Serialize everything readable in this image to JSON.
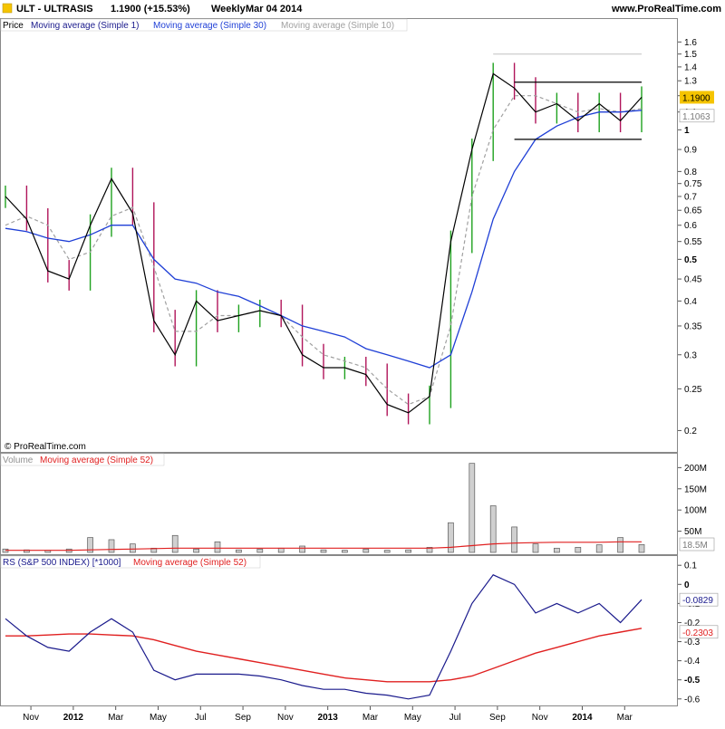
{
  "header": {
    "symbol_title": "ULT - ULTRASIS",
    "last_change": "1.1900 (+15.53%)",
    "period": "Weekly",
    "date": "Mar 04 2014",
    "site": "www.ProRealTime.com"
  },
  "copyright": "© ProRealTime.com",
  "colors": {
    "up_bar": "#1fa21f",
    "down_bar": "#b0145a",
    "close_line": "#000000",
    "ma30": "#1f3fd6",
    "ma10": "#a0a0a0",
    "ma52": "#e02020",
    "rs": "#1a1a8c",
    "volume_bar": "#8a8a8a",
    "last_badge": "#f5c400"
  },
  "chart_data": [
    {
      "type": "line",
      "panel": "price",
      "legend": [
        "Price",
        "Moving average (Simple 1)",
        "Moving average (Simple 30)",
        "Moving average (Simple 10)"
      ],
      "y_scale": "log",
      "ylim": [
        0.19,
        1.65
      ],
      "y_ticks": [
        "1.6",
        "1.5",
        "1.4",
        "1.3",
        "1.2",
        "1.1",
        "1",
        "0.9",
        "0.8",
        "0.75",
        "0.7",
        "0.65",
        "0.6",
        "0.55",
        "0.5",
        "0.45",
        "0.4",
        "0.35",
        "0.3",
        "0.25",
        "0.2"
      ],
      "last_value_label": "1.1900",
      "ma30_value_label": "1.1063",
      "x_ticks": [
        "Nov",
        "2012",
        "Mar",
        "May",
        "Jul",
        "Sep",
        "Nov",
        "2013",
        "Mar",
        "May",
        "Jul",
        "Sep",
        "Nov",
        "2014",
        "Mar"
      ],
      "x": [
        "Sep 2011",
        "Oct 2011",
        "Nov 2011",
        "Dec 2011",
        "Jan 2012",
        "Feb 2012",
        "Mar 2012",
        "Apr 2012",
        "May 2012",
        "Jun 2012",
        "Jul 2012",
        "Aug 2012",
        "Sep 2012",
        "Oct 2012",
        "Nov 2012",
        "Dec 2012",
        "Jan 2013",
        "Feb 2013",
        "Mar 2013",
        "Apr 2013",
        "May 2013",
        "Jun 2013",
        "Jul 2013",
        "Aug 2013",
        "Sep 2013",
        "Oct 2013",
        "Nov 2013",
        "Dec 2013",
        "Jan 2014",
        "Feb 2014",
        "Mar 2014"
      ],
      "series": [
        {
          "name": "Moving average (Simple 1)",
          "values": [
            0.7,
            0.62,
            0.47,
            0.45,
            0.6,
            0.77,
            0.64,
            0.36,
            0.3,
            0.4,
            0.36,
            0.37,
            0.38,
            0.37,
            0.3,
            0.28,
            0.28,
            0.27,
            0.23,
            0.22,
            0.24,
            0.55,
            0.9,
            1.35,
            1.25,
            1.1,
            1.15,
            1.05,
            1.15,
            1.05,
            1.19
          ]
        },
        {
          "name": "Moving average (Simple 30)",
          "values": [
            0.59,
            0.58,
            0.56,
            0.55,
            0.57,
            0.6,
            0.6,
            0.5,
            0.45,
            0.44,
            0.42,
            0.41,
            0.39,
            0.37,
            0.35,
            0.34,
            0.33,
            0.31,
            0.3,
            0.29,
            0.28,
            0.3,
            0.42,
            0.62,
            0.8,
            0.95,
            1.02,
            1.07,
            1.1,
            1.1,
            1.11
          ]
        },
        {
          "name": "Moving average (Simple 10)",
          "values": [
            0.6,
            0.63,
            0.6,
            0.5,
            0.52,
            0.63,
            0.66,
            0.48,
            0.34,
            0.34,
            0.37,
            0.37,
            0.38,
            0.37,
            0.33,
            0.3,
            0.29,
            0.28,
            0.25,
            0.23,
            0.24,
            0.35,
            0.7,
            1.0,
            1.2,
            1.2,
            1.15,
            1.1,
            1.12,
            1.1,
            1.12
          ]
        }
      ],
      "annotations": [
        {
          "type": "horizontal-line",
          "value": 1.5,
          "from": "Aug 2013",
          "to": "Mar 2014"
        },
        {
          "type": "horizontal-line",
          "value": 1.29,
          "from": "Sep 2013",
          "to": "Mar 2014"
        },
        {
          "type": "horizontal-line",
          "value": 0.95,
          "from": "Sep 2013",
          "to": "Mar 2014"
        }
      ]
    },
    {
      "type": "bar",
      "panel": "volume",
      "legend": [
        "Volume",
        "Moving average (Simple 52)"
      ],
      "ylim": [
        0,
        220
      ],
      "y_unit": "M",
      "y_ticks": [
        "200M",
        "150M",
        "100M",
        "50M"
      ],
      "last_value_label": "18.5M",
      "x": [
        "Sep 2011",
        "Oct 2011",
        "Nov 2011",
        "Dec 2011",
        "Jan 2012",
        "Feb 2012",
        "Mar 2012",
        "Apr 2012",
        "May 2012",
        "Jun 2012",
        "Jul 2012",
        "Aug 2012",
        "Sep 2012",
        "Oct 2012",
        "Nov 2012",
        "Dec 2012",
        "Jan 2013",
        "Feb 2013",
        "Mar 2013",
        "Apr 2013",
        "May 2013",
        "Jun 2013",
        "Jul 2013",
        "Aug 2013",
        "Sep 2013",
        "Oct 2013",
        "Nov 2013",
        "Dec 2013",
        "Jan 2014",
        "Feb 2014",
        "Mar 2014"
      ],
      "series": [
        {
          "name": "Volume",
          "values": [
            8,
            6,
            5,
            8,
            35,
            30,
            20,
            10,
            40,
            8,
            25,
            6,
            8,
            10,
            15,
            6,
            5,
            8,
            5,
            6,
            12,
            70,
            210,
            110,
            60,
            20,
            10,
            12,
            18,
            35,
            18.5
          ]
        },
        {
          "name": "Moving average (Simple 52)",
          "values": [
            5,
            5,
            5,
            5,
            6,
            7,
            8,
            9,
            10,
            10,
            10,
            10,
            10,
            10,
            10,
            10,
            10,
            10,
            10,
            10,
            10,
            12,
            16,
            20,
            22,
            23,
            24,
            24,
            24,
            25,
            25
          ]
        }
      ]
    },
    {
      "type": "line",
      "panel": "rs",
      "legend": [
        "RS (S&P 500 INDEX) [*1000]",
        "Moving average (Simple 52)"
      ],
      "ylim": [
        -0.62,
        0.12
      ],
      "y_ticks": [
        "0.1",
        "0",
        "-0.1",
        "-0.2",
        "-0.3",
        "-0.4",
        "-0.5",
        "-0.6"
      ],
      "last_value_label": "-0.0829",
      "ma_value_label": "-0.2303",
      "x": [
        "Sep 2011",
        "Oct 2011",
        "Nov 2011",
        "Dec 2011",
        "Jan 2012",
        "Feb 2012",
        "Mar 2012",
        "Apr 2012",
        "May 2012",
        "Jun 2012",
        "Jul 2012",
        "Aug 2012",
        "Sep 2012",
        "Oct 2012",
        "Nov 2012",
        "Dec 2012",
        "Jan 2013",
        "Feb 2013",
        "Mar 2013",
        "Apr 2013",
        "May 2013",
        "Jun 2013",
        "Jul 2013",
        "Aug 2013",
        "Sep 2013",
        "Oct 2013",
        "Nov 2013",
        "Dec 2013",
        "Jan 2014",
        "Feb 2014",
        "Mar 2014"
      ],
      "series": [
        {
          "name": "RS (S&P 500 INDEX) [*1000]",
          "values": [
            -0.18,
            -0.27,
            -0.33,
            -0.35,
            -0.25,
            -0.18,
            -0.25,
            -0.45,
            -0.5,
            -0.47,
            -0.47,
            -0.47,
            -0.48,
            -0.5,
            -0.53,
            -0.55,
            -0.55,
            -0.57,
            -0.58,
            -0.6,
            -0.58,
            -0.35,
            -0.1,
            0.05,
            0.0,
            -0.15,
            -0.1,
            -0.15,
            -0.1,
            -0.2,
            -0.08
          ]
        },
        {
          "name": "Moving average (Simple 52)",
          "values": [
            -0.27,
            -0.27,
            -0.265,
            -0.26,
            -0.26,
            -0.265,
            -0.27,
            -0.29,
            -0.32,
            -0.35,
            -0.37,
            -0.39,
            -0.41,
            -0.43,
            -0.45,
            -0.47,
            -0.49,
            -0.5,
            -0.51,
            -0.51,
            -0.51,
            -0.5,
            -0.48,
            -0.44,
            -0.4,
            -0.36,
            -0.33,
            -0.3,
            -0.27,
            -0.25,
            -0.23
          ]
        }
      ]
    }
  ]
}
